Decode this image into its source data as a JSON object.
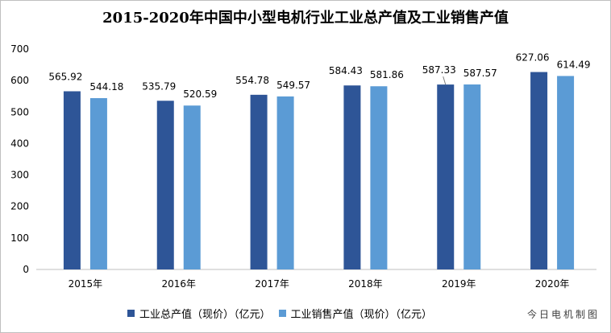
{
  "chart_data": {
    "type": "bar",
    "title": "2015-2020年中国中小型电机行业工业总产值及工业销售产值",
    "categories": [
      "2015年",
      "2016年",
      "2017年",
      "2018年",
      "2019年",
      "2020年"
    ],
    "series": [
      {
        "name": "工业总产值（现价）（亿元）",
        "color": "#2E5597",
        "values": [
          565.92,
          535.79,
          554.78,
          584.43,
          587.33,
          627.06
        ],
        "labels": [
          "565.92",
          "535.79",
          "554.78",
          "584.43",
          "587.33",
          "627.06"
        ]
      },
      {
        "name": "工业销售产值（现价）（亿元）",
        "color": "#5B9BD5",
        "values": [
          544.18,
          520.59,
          549.57,
          581.86,
          587.57,
          614.49
        ],
        "labels": [
          "544.18",
          "520.59",
          "549.57",
          "581.86",
          "587.57",
          "614.49"
        ]
      }
    ],
    "ylim": [
      0,
      700
    ],
    "yticks": [
      0,
      100,
      200,
      300,
      400,
      500,
      600,
      700
    ],
    "grid": false,
    "legend": "bottom"
  },
  "source": "今日电机制图"
}
